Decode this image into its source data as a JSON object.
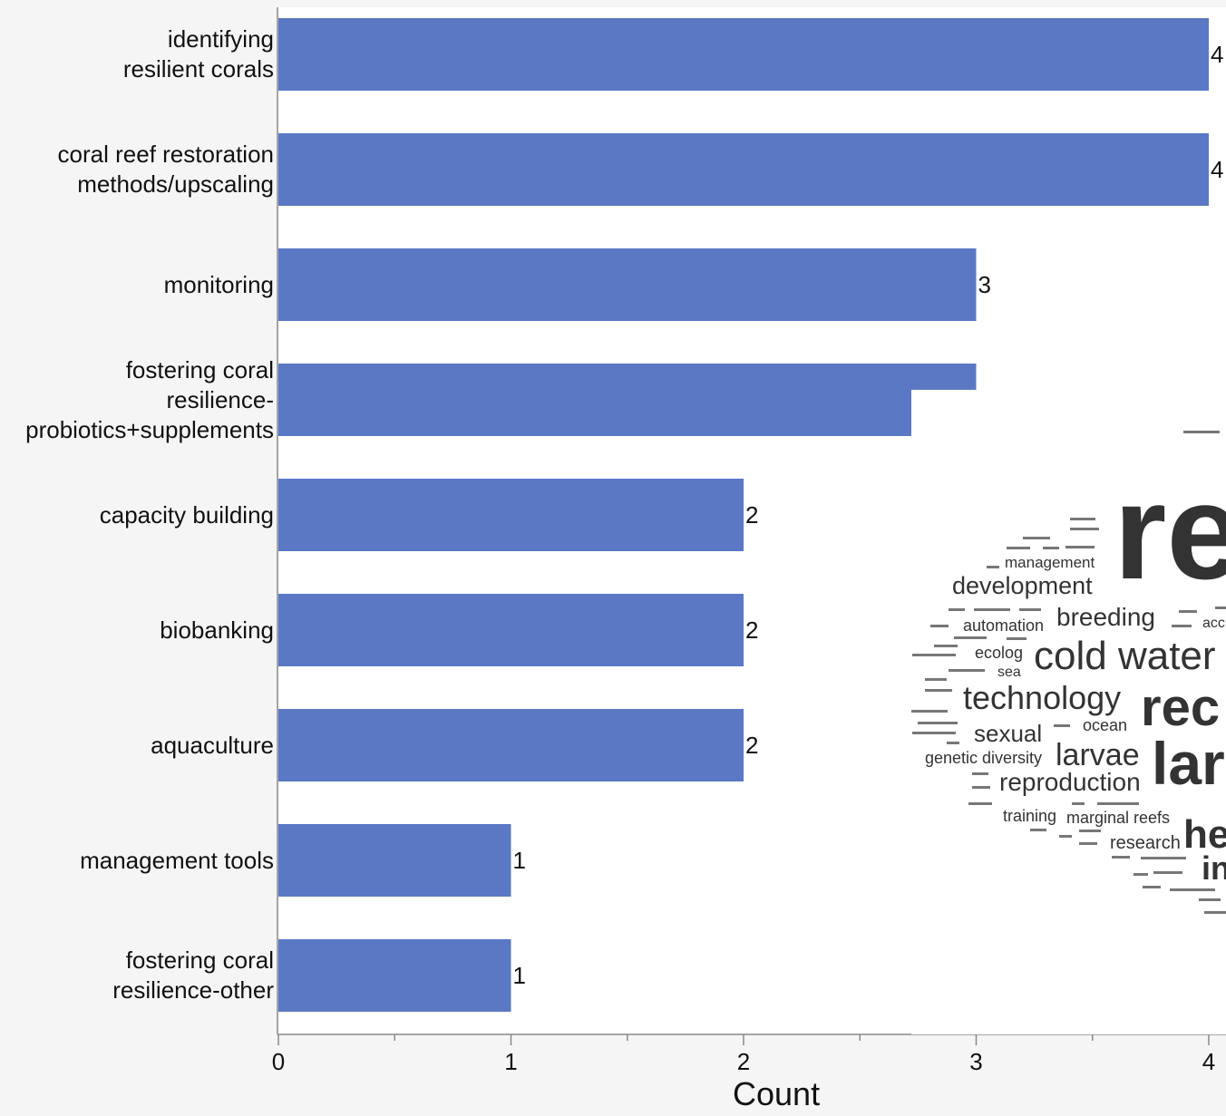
{
  "chart_data": {
    "type": "bar",
    "orientation": "horizontal",
    "categories": [
      "identifying\nresilient corals",
      "coral reef restoration\nmethods/upscaling",
      "monitoring",
      "fostering coral\nresilience-\nprobiotics+supplements",
      "capacity building",
      "biobanking",
      "aquaculture",
      "management tools",
      "fostering coral\nresilience-other"
    ],
    "values": [
      4,
      4,
      3,
      3,
      2,
      2,
      2,
      1,
      1
    ],
    "value_labels": [
      "4",
      "4",
      "3",
      "",
      "2",
      "2",
      "2",
      "1",
      "1"
    ],
    "xlabel": "Count",
    "xlim": [
      0,
      4.07
    ],
    "xticks": [
      "0",
      "1",
      "2",
      "3",
      "4"
    ],
    "bar_color": "#5b78c4"
  },
  "word_cloud": {
    "words": [
      "re",
      "development",
      "management",
      "breeding",
      "automation",
      "cold water",
      "ecolog",
      "sea",
      "technology",
      "rec",
      "sexual",
      "ocean",
      "larvae",
      "lar",
      "genetic diversity",
      "reproduction",
      "training",
      "marginal reefs",
      "research",
      "he",
      "in",
      "acc"
    ]
  }
}
